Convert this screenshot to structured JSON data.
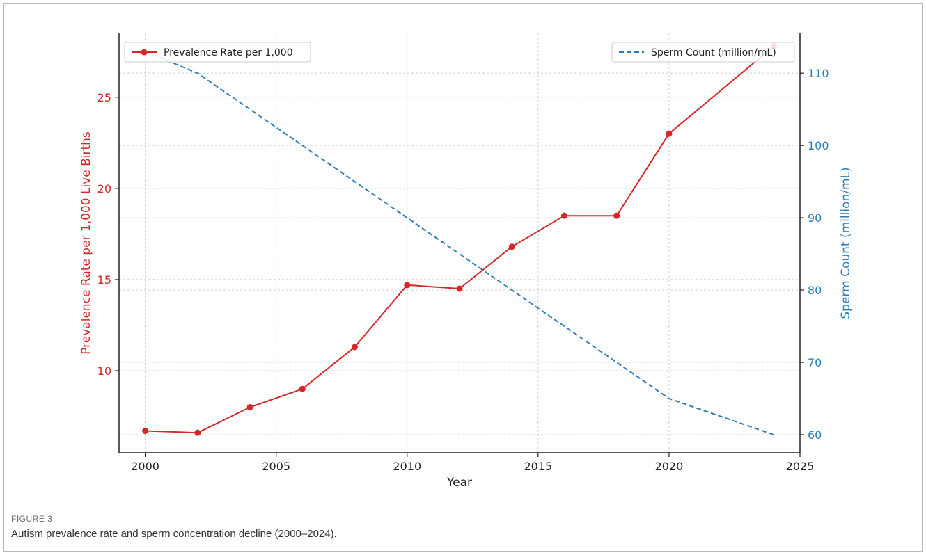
{
  "figure": {
    "label": "FIGURE 3",
    "caption": "Autism prevalence rate and sperm concentration decline (2000–2024)."
  },
  "chart_data": {
    "type": "line",
    "title": "",
    "xlabel": "Year",
    "ylabel_left": "Prevalence Rate per 1,000 Live Births",
    "ylabel_right": "Sperm Count (million/mL)",
    "xlim": [
      1999,
      2025
    ],
    "ylim_left": [
      5.5,
      28.5
    ],
    "ylim_right": [
      57.5,
      115.5
    ],
    "x_ticks": [
      2000,
      2005,
      2010,
      2015,
      2020,
      2025
    ],
    "y_ticks_left": [
      10,
      15,
      20,
      25
    ],
    "y_ticks_right": [
      60,
      70,
      80,
      90,
      100,
      110
    ],
    "grid": true,
    "series": [
      {
        "name": "Prevalence Rate per 1,000",
        "axis": "left",
        "style": "solid",
        "marker": "circle",
        "color": "#d62728",
        "x": [
          2000,
          2002,
          2004,
          2006,
          2008,
          2010,
          2012,
          2014,
          2016,
          2018,
          2020,
          2024
        ],
        "values": [
          6.7,
          6.6,
          8.0,
          9.0,
          11.3,
          14.7,
          14.5,
          16.8,
          18.5,
          18.5,
          23.0,
          27.8
        ]
      },
      {
        "name": "Sperm Count (million/mL)",
        "axis": "right",
        "style": "dashed",
        "marker": "none",
        "color": "#2a7fba",
        "x": [
          2000,
          2002,
          2020,
          2024
        ],
        "values": [
          113,
          110,
          65,
          60
        ]
      }
    ],
    "legends": [
      {
        "series": 0,
        "placement": "top-left"
      },
      {
        "series": 1,
        "placement": "top-right"
      }
    ]
  }
}
